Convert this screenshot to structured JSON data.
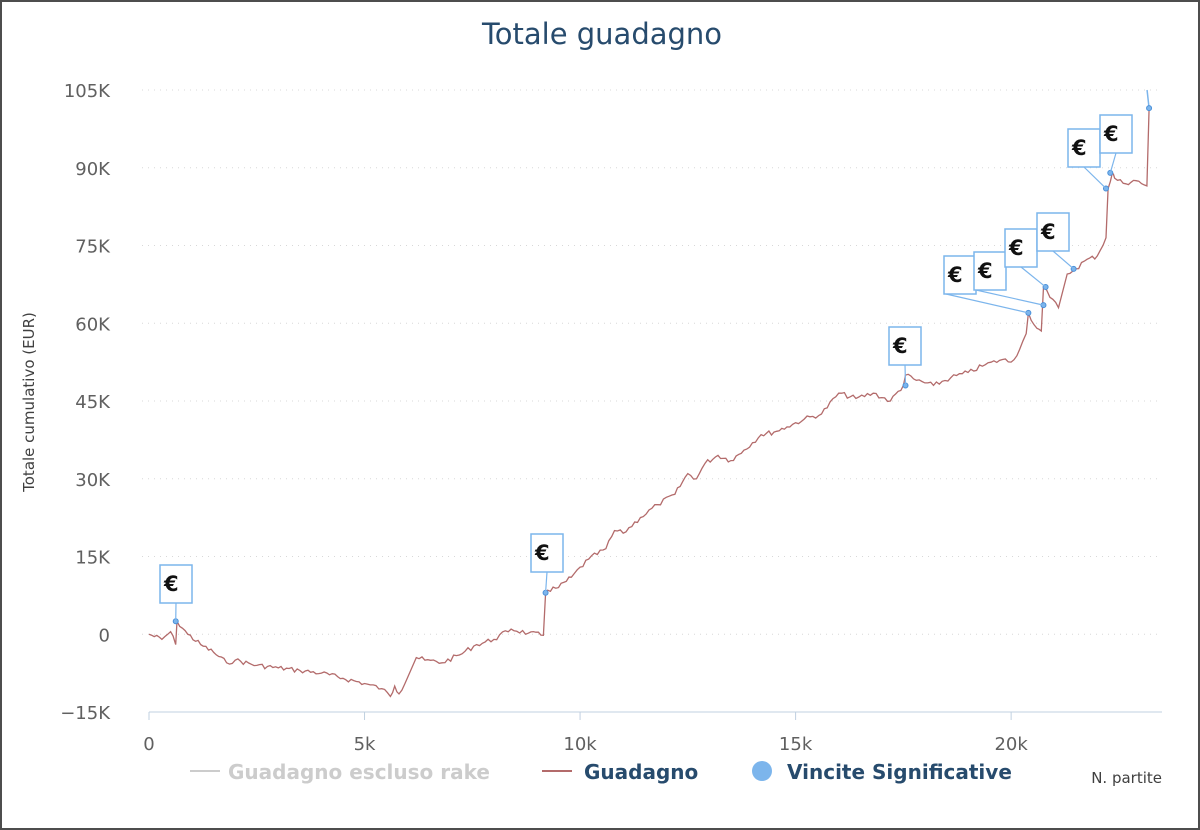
{
  "chart_data": {
    "type": "line",
    "title": "Totale guadagno",
    "ylabel": "Totale cumulativo (EUR)",
    "xlabel": "N. partite",
    "ylim": [
      -15000,
      105000
    ],
    "xlim": [
      0,
      23500
    ],
    "y_ticks": [
      -15000,
      0,
      15000,
      30000,
      45000,
      60000,
      75000,
      90000,
      105000
    ],
    "y_tick_labels": [
      "−15K",
      "0",
      "15K",
      "30K",
      "45K",
      "60K",
      "75K",
      "90K",
      "105K"
    ],
    "x_ticks": [
      0,
      5000,
      10000,
      15000,
      20000
    ],
    "x_tick_labels": [
      "0",
      "5k",
      "10k",
      "15k",
      "20k"
    ],
    "grid": "horizontal dotted",
    "legend": "bottom",
    "series": [
      {
        "name": "Guadagno escluso rake",
        "color": "#cccccc",
        "visible": false,
        "x": [],
        "y": []
      },
      {
        "name": "Guadagno",
        "color": "#b36b6b",
        "x": [
          0,
          300,
          500,
          620,
          650,
          900,
          1200,
          1500,
          1800,
          2000,
          2500,
          3000,
          3500,
          4000,
          4500,
          5000,
          5400,
          5600,
          5700,
          5800,
          6200,
          6400,
          6800,
          7200,
          7600,
          8000,
          8400,
          8800,
          9150,
          9200,
          9250,
          9500,
          9800,
          10200,
          10600,
          10800,
          11000,
          11400,
          11800,
          12200,
          12500,
          12700,
          12900,
          13200,
          13500,
          13800,
          14200,
          14500,
          14800,
          15200,
          15600,
          16000,
          16400,
          16800,
          17200,
          17500,
          17550,
          17800,
          18200,
          18600,
          19000,
          19400,
          19800,
          20000,
          20200,
          20350,
          20400,
          20600,
          20700,
          20750,
          20900,
          21100,
          21300,
          21500,
          21700,
          22000,
          22200,
          22250,
          22350,
          22400,
          22600,
          22900,
          23150,
          23200
        ],
        "y": [
          0,
          -1000,
          500,
          -2000,
          2500,
          0,
          -2000,
          -3500,
          -5500,
          -5000,
          -6000,
          -6500,
          -7000,
          -7500,
          -8500,
          -9500,
          -10500,
          -12000,
          -10000,
          -11500,
          -4500,
          -5000,
          -5500,
          -4000,
          -2000,
          -1000,
          1000,
          200,
          -200,
          8000,
          8500,
          9000,
          11000,
          14500,
          16500,
          20000,
          19500,
          22500,
          25000,
          27000,
          31000,
          30000,
          33000,
          34500,
          33500,
          35500,
          38500,
          39000,
          40000,
          41500,
          42500,
          46500,
          45500,
          46500,
          45000,
          48000,
          50000,
          49000,
          48000,
          49500,
          50500,
          52000,
          53000,
          52500,
          55000,
          58000,
          62000,
          59000,
          58500,
          67000,
          65000,
          63000,
          69500,
          70500,
          72000,
          73000,
          76500,
          86000,
          89000,
          88000,
          87000,
          87500,
          86500,
          101500
        ]
      },
      {
        "name": "Vincite Significative",
        "color": "#7cb5ec",
        "type": "flags",
        "points": [
          {
            "x": 620,
            "y": 2500,
            "label": "€"
          },
          {
            "x": 9200,
            "y": 8000,
            "label": "€"
          },
          {
            "x": 17550,
            "y": 48000,
            "label": "€"
          },
          {
            "x": 20400,
            "y": 62000,
            "label": "€"
          },
          {
            "x": 20750,
            "y": 63500,
            "label": "€"
          },
          {
            "x": 20800,
            "y": 67000,
            "label": "€"
          },
          {
            "x": 21450,
            "y": 70500,
            "label": "€"
          },
          {
            "x": 22200,
            "y": 86000,
            "label": "€"
          },
          {
            "x": 22300,
            "y": 89000,
            "label": "€"
          },
          {
            "x": 23200,
            "y": 101500,
            "label": "€"
          }
        ]
      }
    ]
  }
}
